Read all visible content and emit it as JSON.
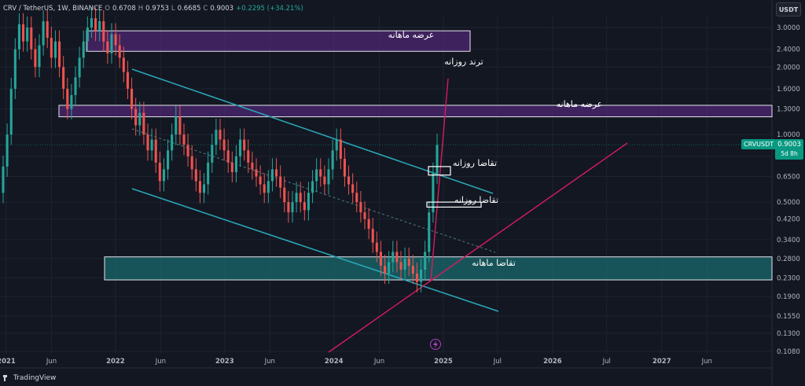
{
  "header": {
    "symbol": "CRV / TetherUS, 1W, BINANCE",
    "open_label": "O",
    "open": "0.6708",
    "high_label": "H",
    "high": "0.9753",
    "low_label": "L",
    "low": "0.6685",
    "close_label": "C",
    "close": "0.9003",
    "change": "+0.2295 (+34.21%)"
  },
  "currency_button": "USDT",
  "ticker_tag": "CRVUSDT",
  "last_price": "0.9003",
  "countdown": "5d 8h",
  "footer_logo": "TradingView",
  "colors": {
    "background": "#131722",
    "up": "#26a69a",
    "down": "#ef5350",
    "channel": "#2aa5b5",
    "trend": "#d81b60",
    "supply_zone": "#5b2a86",
    "demand_zone": "#1a6a6c"
  },
  "chart_data": {
    "type": "candlestick",
    "scale": "log",
    "y_ticks": [
      "3.0000",
      "2.4000",
      "2.0000",
      "1.6000",
      "1.3000",
      "1.0000",
      "0.8000",
      "0.6500",
      "0.5000",
      "0.4200",
      "0.3400",
      "0.2800",
      "0.2300",
      "0.1900",
      "0.1550",
      "0.1300",
      "0.1080"
    ],
    "x_ticks": [
      "2021",
      "Jun",
      "2022",
      "Jun",
      "2023",
      "Jun",
      "2024",
      "Jun",
      "2025",
      "Jul",
      "2026",
      "Jul",
      "2027",
      "Jun"
    ],
    "ylim": [
      0.105,
      3.3
    ],
    "xlim": [
      "2021-01",
      "2027-09"
    ],
    "grid": true,
    "annotations": [
      {
        "text": "عرضه ماهانه",
        "kind": "zone",
        "low": 2.35,
        "high": 2.9
      },
      {
        "text": "عرضه ماهانه",
        "kind": "zone",
        "low": 1.2,
        "high": 1.35
      },
      {
        "text": "تقاضا ماهانه",
        "kind": "zone",
        "low": 0.225,
        "high": 0.285
      },
      {
        "text": "تقاضا روزانه",
        "kind": "box",
        "low": 0.66,
        "high": 0.72
      },
      {
        "text": "تقاضا روزانه",
        "kind": "box",
        "low": 0.475,
        "high": 0.5
      },
      {
        "text": "ترند روزانه",
        "kind": "trendline"
      }
    ],
    "series": [
      {
        "values": [
          [
            0.55,
            0.72
          ],
          [
            0.72,
            1.0
          ],
          [
            1.0,
            1.6
          ],
          [
            1.6,
            2.4
          ],
          [
            2.4,
            3.1
          ],
          [
            3.1,
            2.6
          ],
          [
            2.6,
            3.0
          ],
          [
            3.0,
            2.4
          ],
          [
            2.4,
            2.0
          ],
          [
            2.0,
            2.5
          ],
          [
            2.5,
            3.2
          ],
          [
            3.2,
            2.7
          ],
          [
            2.7,
            2.2
          ],
          [
            2.2,
            2.6
          ],
          [
            2.6,
            2.0
          ],
          [
            2.0,
            1.6
          ],
          [
            1.6,
            1.3
          ],
          [
            1.3,
            1.5
          ],
          [
            1.5,
            1.8
          ],
          [
            1.8,
            2.2
          ],
          [
            2.2,
            2.6
          ],
          [
            2.6,
            3.0
          ],
          [
            3.0,
            3.3
          ],
          [
            3.3,
            2.9
          ],
          [
            2.9,
            3.2
          ],
          [
            3.2,
            2.6
          ],
          [
            2.6,
            2.3
          ],
          [
            2.3,
            2.8
          ],
          [
            2.8,
            2.5
          ],
          [
            2.5,
            2.2
          ],
          [
            2.2,
            1.9
          ],
          [
            1.9,
            1.6
          ],
          [
            1.6,
            1.3
          ],
          [
            1.3,
            1.1
          ],
          [
            1.1,
            1.25
          ],
          [
            1.25,
            1.0
          ],
          [
            1.0,
            0.85
          ],
          [
            0.85,
            0.95
          ],
          [
            0.95,
            0.75
          ],
          [
            0.75,
            0.62
          ],
          [
            0.62,
            0.7
          ],
          [
            0.7,
            0.85
          ],
          [
            0.85,
            1.0
          ],
          [
            1.0,
            1.2
          ],
          [
            1.2,
            1.0
          ],
          [
            1.0,
            0.9
          ],
          [
            0.9,
            0.8
          ],
          [
            0.8,
            0.7
          ],
          [
            0.7,
            0.62
          ],
          [
            0.62,
            0.55
          ],
          [
            0.55,
            0.6
          ],
          [
            0.6,
            0.75
          ],
          [
            0.75,
            0.9
          ],
          [
            0.9,
            1.05
          ],
          [
            1.05,
            0.95
          ],
          [
            0.95,
            0.85
          ],
          [
            0.85,
            0.75
          ],
          [
            0.75,
            0.68
          ],
          [
            0.68,
            0.8
          ],
          [
            0.8,
            0.95
          ],
          [
            0.95,
            0.85
          ],
          [
            0.85,
            0.75
          ],
          [
            0.75,
            0.7
          ],
          [
            0.7,
            0.65
          ],
          [
            0.65,
            0.6
          ],
          [
            0.6,
            0.55
          ],
          [
            0.55,
            0.62
          ],
          [
            0.62,
            0.7
          ],
          [
            0.7,
            0.65
          ],
          [
            0.65,
            0.58
          ],
          [
            0.58,
            0.5
          ],
          [
            0.5,
            0.45
          ],
          [
            0.45,
            0.5
          ],
          [
            0.5,
            0.55
          ],
          [
            0.55,
            0.5
          ],
          [
            0.5,
            0.46
          ],
          [
            0.46,
            0.55
          ],
          [
            0.55,
            0.62
          ],
          [
            0.62,
            0.7
          ],
          [
            0.7,
            0.65
          ],
          [
            0.65,
            0.6
          ],
          [
            0.6,
            0.7
          ],
          [
            0.7,
            0.85
          ],
          [
            0.85,
            0.95
          ],
          [
            0.95,
            0.78
          ],
          [
            0.78,
            0.65
          ],
          [
            0.65,
            0.6
          ],
          [
            0.6,
            0.55
          ],
          [
            0.55,
            0.5
          ],
          [
            0.5,
            0.45
          ],
          [
            0.45,
            0.42
          ],
          [
            0.42,
            0.38
          ],
          [
            0.38,
            0.33
          ],
          [
            0.33,
            0.3
          ],
          [
            0.3,
            0.26
          ],
          [
            0.26,
            0.24
          ],
          [
            0.24,
            0.27
          ],
          [
            0.27,
            0.3
          ],
          [
            0.3,
            0.27
          ],
          [
            0.27,
            0.25
          ],
          [
            0.25,
            0.28
          ],
          [
            0.28,
            0.26
          ],
          [
            0.26,
            0.24
          ],
          [
            0.24,
            0.22
          ],
          [
            0.22,
            0.25
          ],
          [
            0.25,
            0.3
          ],
          [
            0.3,
            0.45
          ],
          [
            0.45,
            0.67
          ],
          [
            0.67,
            0.9
          ]
        ]
      }
    ]
  }
}
